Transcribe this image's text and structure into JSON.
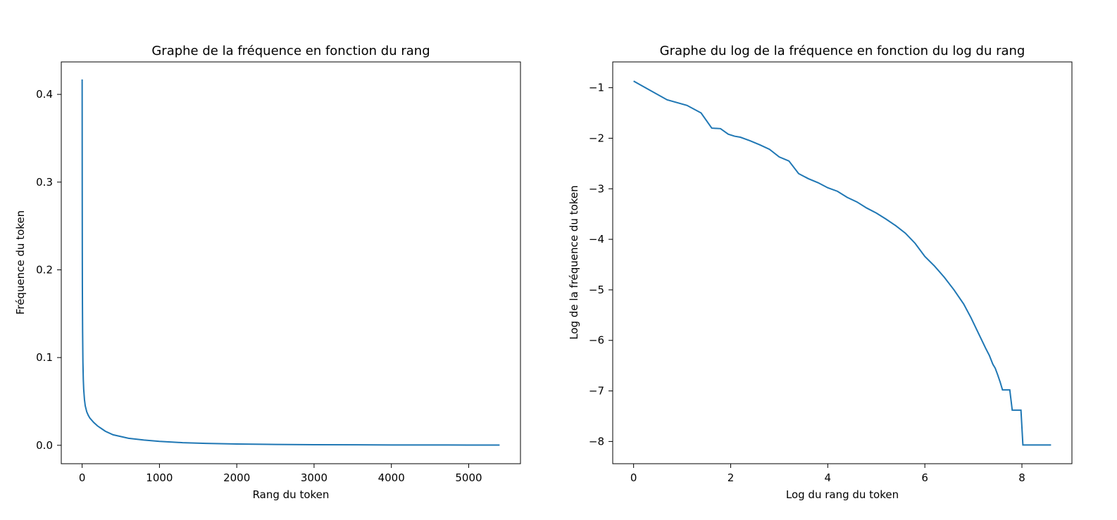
{
  "chart_data": [
    {
      "type": "line",
      "title": "Graphe de la fréquence en fonction du rang",
      "xlabel": "Rang du token",
      "ylabel": "Fréquence du token",
      "xlim": [
        -270,
        5670
      ],
      "ylim": [
        -0.021,
        0.437
      ],
      "xticks": [
        0,
        1000,
        2000,
        3000,
        4000,
        5000
      ],
      "xtick_labels": [
        "0",
        "1000",
        "2000",
        "3000",
        "4000",
        "5000"
      ],
      "yticks": [
        0.0,
        0.1,
        0.2,
        0.3,
        0.4
      ],
      "ytick_labels": [
        "0.0",
        "0.1",
        "0.2",
        "0.3",
        "0.4"
      ],
      "grid": false,
      "legend": null,
      "color": "#1f77b4",
      "series": [
        {
          "x": [
            0,
            1,
            2,
            3,
            4,
            6,
            10,
            15,
            20,
            30,
            40,
            60,
            80,
            100,
            150,
            200,
            250,
            300,
            400,
            500,
            600,
            800,
            1000,
            1300,
            1600,
            2000,
            2500,
            3000,
            4000,
            5000,
            5400
          ],
          "y": [
            0.417,
            0.29,
            0.22,
            0.18,
            0.16,
            0.13,
            0.095,
            0.075,
            0.064,
            0.052,
            0.045,
            0.038,
            0.034,
            0.031,
            0.026,
            0.022,
            0.019,
            0.016,
            0.012,
            0.01,
            0.008,
            0.006,
            0.0045,
            0.003,
            0.0022,
            0.0015,
            0.001,
            0.0007,
            0.0004,
            0.0003,
            0.0003
          ]
        }
      ]
    },
    {
      "type": "line",
      "title": "Graphe du log de la fréquence en fonction du log du rang",
      "xlabel": "Log du rang du token",
      "ylabel": "Log de la fréquence du token",
      "xlim": [
        -0.43,
        9.03
      ],
      "ylim": [
        -8.44,
        -0.49
      ],
      "xticks": [
        0,
        2,
        4,
        6,
        8
      ],
      "xtick_labels": [
        "0",
        "2",
        "4",
        "6",
        "8"
      ],
      "yticks": [
        -1,
        -2,
        -3,
        -4,
        -5,
        -6,
        -7,
        -8
      ],
      "ytick_labels": [
        "−1",
        "−2",
        "−3",
        "−4",
        "−5",
        "−6",
        "−7",
        "−8"
      ],
      "grid": false,
      "legend": null,
      "color": "#1f77b4",
      "series": [
        {
          "x": [
            0,
            0.69,
            1.1,
            1.39,
            1.61,
            1.79,
            1.95,
            2.08,
            2.2,
            2.4,
            2.6,
            2.8,
            3.0,
            3.2,
            3.4,
            3.6,
            3.8,
            4.0,
            4.2,
            4.4,
            4.6,
            4.8,
            5.0,
            5.2,
            5.4,
            5.6,
            5.8,
            6.0,
            6.2,
            6.4,
            6.6,
            6.8,
            6.95,
            7.05,
            7.15,
            7.25,
            7.33,
            7.4,
            7.45,
            7.5,
            7.55,
            7.6,
            7.75,
            7.8,
            7.98,
            8.02,
            8.05,
            8.6
          ],
          "y": [
            -0.87,
            -1.24,
            -1.35,
            -1.5,
            -1.8,
            -1.81,
            -1.92,
            -1.96,
            -1.98,
            -2.05,
            -2.13,
            -2.22,
            -2.37,
            -2.45,
            -2.7,
            -2.8,
            -2.88,
            -2.98,
            -3.05,
            -3.17,
            -3.26,
            -3.38,
            -3.48,
            -3.6,
            -3.73,
            -3.88,
            -4.08,
            -4.34,
            -4.53,
            -4.75,
            -5.0,
            -5.28,
            -5.55,
            -5.75,
            -5.95,
            -6.15,
            -6.3,
            -6.47,
            -6.55,
            -6.68,
            -6.82,
            -6.98,
            -6.98,
            -7.38,
            -7.38,
            -8.07,
            -8.07,
            -8.07
          ]
        }
      ]
    }
  ]
}
